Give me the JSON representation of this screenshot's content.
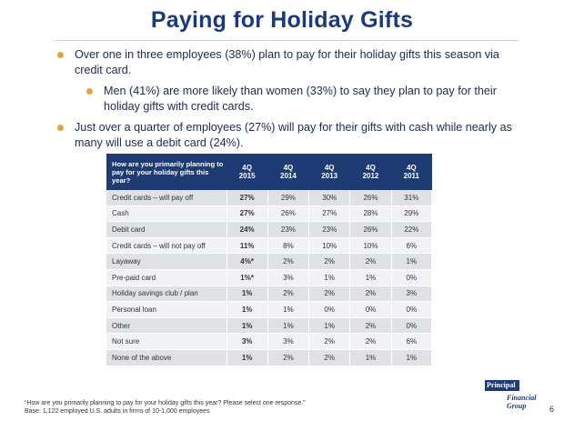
{
  "title": "Paying for Holiday Gifts",
  "bullets": [
    "Over one in three employees (38%) plan to pay for their holiday gifts this season via credit card.",
    "Men (41%) are more likely than women (33%) to say they plan to pay for their holiday gifts with credit cards.",
    "Just over a quarter of employees (27%) will pay for their gifts with cash while nearly as many will use a debit card (24%)."
  ],
  "table": {
    "question": "How are you primarily planning to pay for your holiday gifts this year?",
    "columns": [
      "4Q\n2015",
      "4Q\n2014",
      "4Q\n2013",
      "4Q\n2012",
      "4Q\n2011"
    ],
    "rows": [
      {
        "label": "Credit cards – will pay off",
        "values": [
          "27%",
          "29%",
          "30%",
          "26%",
          "31%"
        ]
      },
      {
        "label": "Cash",
        "values": [
          "27%",
          "26%",
          "27%",
          "28%",
          "29%"
        ]
      },
      {
        "label": "Debit card",
        "values": [
          "24%",
          "23%",
          "23%",
          "26%",
          "22%"
        ]
      },
      {
        "label": "Credit cards – will not pay off",
        "values": [
          "11%",
          "8%",
          "10%",
          "10%",
          "6%"
        ]
      },
      {
        "label": "Layaway",
        "values": [
          "4%*",
          "2%",
          "2%",
          "2%",
          "1%"
        ]
      },
      {
        "label": "Pre-paid card",
        "values": [
          "1%*",
          "3%",
          "1%",
          "1%",
          "0%"
        ]
      },
      {
        "label": "Holiday savings club / plan",
        "values": [
          "1%",
          "2%",
          "2%",
          "2%",
          "3%"
        ]
      },
      {
        "label": "Personal loan",
        "values": [
          "1%",
          "1%",
          "0%",
          "0%",
          "0%"
        ]
      },
      {
        "label": "Other",
        "values": [
          "1%",
          "1%",
          "1%",
          "2%",
          "0%"
        ]
      },
      {
        "label": "Not sure",
        "values": [
          "3%",
          "3%",
          "2%",
          "2%",
          "6%"
        ]
      },
      {
        "label": "None of the above",
        "values": [
          "1%",
          "2%",
          "2%",
          "1%",
          "1%"
        ]
      }
    ]
  },
  "footnote": {
    "line1": "“How are you primarily planning to pay for your holiday gifts this year?  Please select one response.”",
    "line2": "Base: 1,122 employed U.S. adults in firms of 10-1,000 employees"
  },
  "logo": {
    "name": "Principal",
    "sub1": "Financial",
    "sub2": "Group"
  },
  "page_number": "6",
  "colors": {
    "title": "#1a3a7a",
    "header_bg": "#1f3b73",
    "bullet": "#e3a43a"
  }
}
